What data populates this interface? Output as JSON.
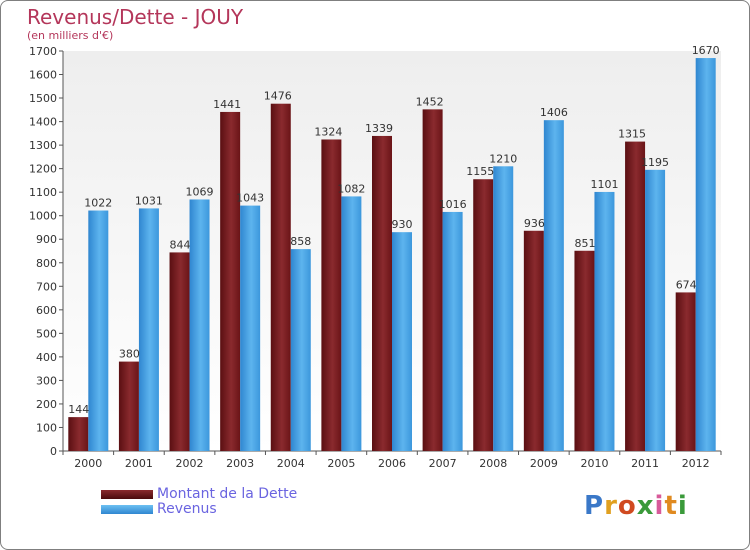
{
  "header": {
    "title": "Revenus/Dette - JOUY",
    "subtitle": "(en milliers d'€)"
  },
  "legend": {
    "dette_label": "Montant de la Dette",
    "revenus_label": "Revenus"
  },
  "logo": {
    "text": "Proxiti"
  },
  "colors": {
    "dette": "#6e1416",
    "revenus": "#4ba7e8",
    "title": "#b4365a",
    "legend_text": "#6a64e0",
    "background_top": "#f0f0f0",
    "background_bottom": "#ffffff"
  },
  "chart_data": {
    "type": "bar",
    "title": "Revenus/Dette - JOUY",
    "subtitle": "(en milliers d'€)",
    "categories": [
      "2000",
      "2001",
      "2002",
      "2003",
      "2004",
      "2005",
      "2006",
      "2007",
      "2008",
      "2009",
      "2010",
      "2011",
      "2012"
    ],
    "series": [
      {
        "name": "Montant de la Dette",
        "values": [
          144,
          380,
          844,
          1441,
          1476,
          1324,
          1339,
          1452,
          1155,
          936,
          851,
          1315,
          674
        ]
      },
      {
        "name": "Revenus",
        "values": [
          1022,
          1031,
          1069,
          1043,
          858,
          1082,
          930,
          1016,
          1210,
          1406,
          1101,
          1195,
          1670
        ]
      }
    ],
    "ylim": [
      0,
      1700
    ],
    "yticks": [
      0,
      100,
      200,
      300,
      400,
      500,
      600,
      700,
      800,
      900,
      1000,
      1100,
      1200,
      1300,
      1400,
      1500,
      1600,
      1700
    ],
    "grid": false,
    "legend_position": "bottom-left"
  }
}
